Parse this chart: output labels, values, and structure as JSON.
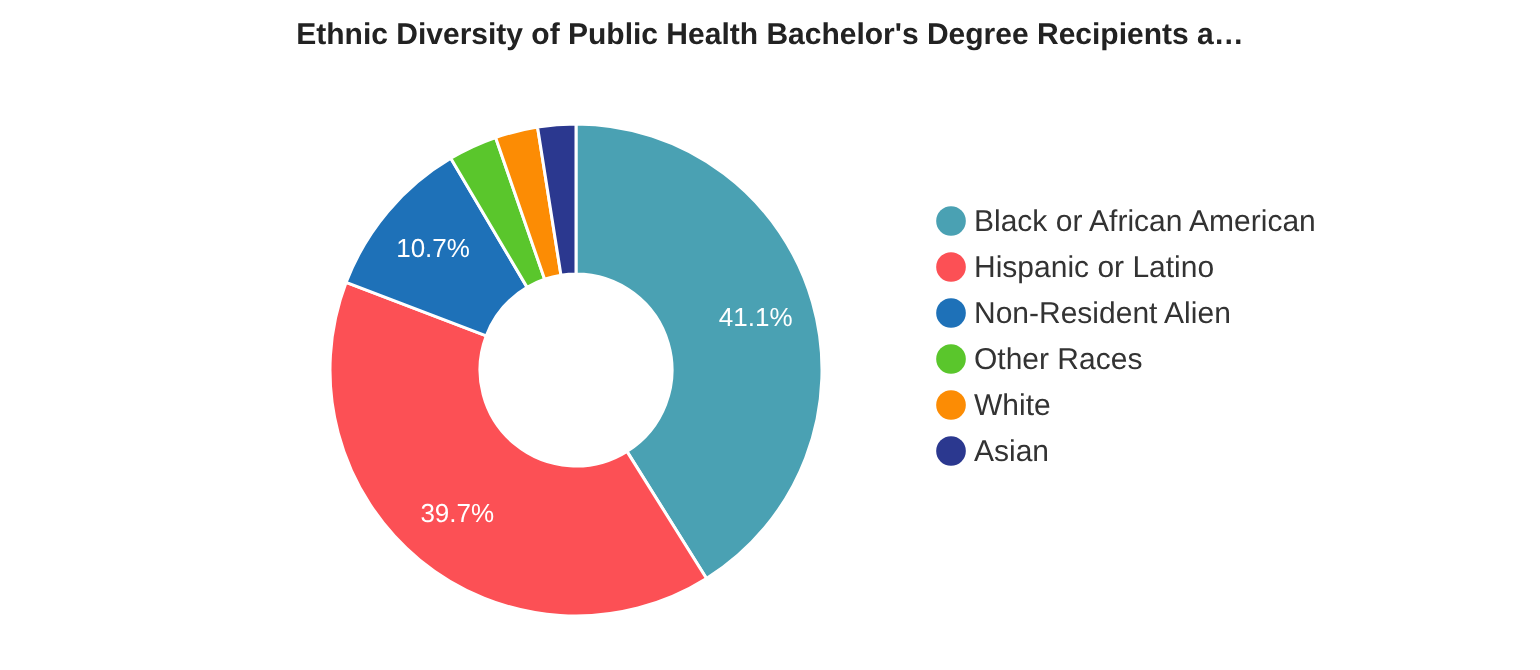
{
  "chart_data": {
    "type": "donut",
    "title": "Ethnic Diversity of Public Health Bachelor's Degree Recipients a…",
    "categories": [
      "Black or African American",
      "Hispanic or Latino",
      "Non-Resident Alien",
      "Other Races",
      "White",
      "Asian"
    ],
    "values": [
      41.1,
      39.7,
      10.7,
      3.2,
      2.8,
      2.5
    ],
    "colors": [
      "#4aa1b3",
      "#fc5055",
      "#1e71b8",
      "#5ac62c",
      "#fc8c04",
      "#2b388f"
    ],
    "value_labels": [
      "41.1%",
      "39.7%",
      "10.7%",
      null,
      null,
      null
    ],
    "legend": "right"
  }
}
